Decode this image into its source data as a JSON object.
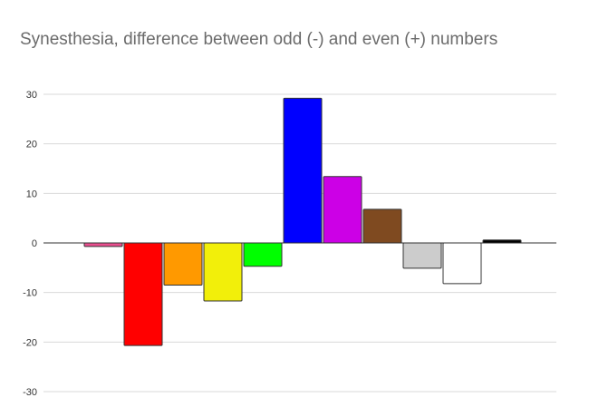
{
  "chart_data": {
    "type": "bar",
    "title": "Synesthesia, difference between odd (-) and even (+) numbers",
    "xlabel": "",
    "ylabel": "",
    "ylim": [
      -30,
      30
    ],
    "yticks": [
      30,
      20,
      10,
      0,
      -10,
      -20,
      -30
    ],
    "yticklabels": [
      "30",
      "20",
      "10",
      "0",
      "-10",
      "-20",
      "-30"
    ],
    "grid": true,
    "legend": "none",
    "categories": [
      "pink",
      "red",
      "orange",
      "yellow",
      "green",
      "blue",
      "purple",
      "brown",
      "gray",
      "white",
      "black"
    ],
    "values": [
      -0.7,
      -20.7,
      -8.5,
      -11.7,
      -4.7,
      29.2,
      13.4,
      6.8,
      -5.1,
      -8.2,
      0.6
    ],
    "colors": [
      "#ea4f8f",
      "#ff0000",
      "#ff9900",
      "#f2ef0a",
      "#00ff00",
      "#0000ff",
      "#cc00e6",
      "#7f4a20",
      "#cccccc",
      "#ffffff",
      "#000000"
    ]
  }
}
